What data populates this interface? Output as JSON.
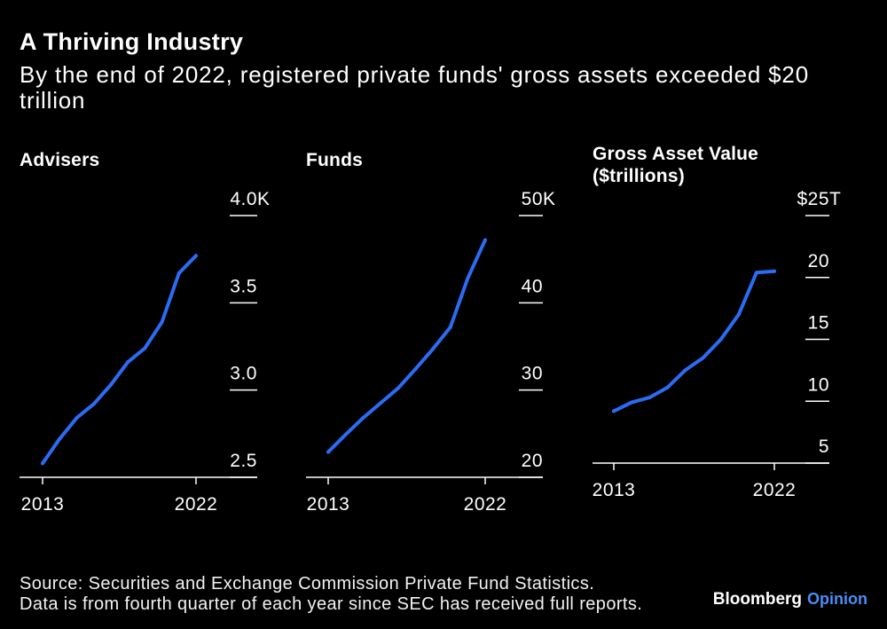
{
  "header": {
    "title": "A Thriving Industry",
    "subtitle": "By the end of 2022, registered private funds' gross assets exceeded $20 trillion"
  },
  "chart_data": [
    {
      "type": "line",
      "title": "Advisers",
      "x": [
        2013,
        2014,
        2015,
        2016,
        2017,
        2018,
        2019,
        2020,
        2021,
        2022
      ],
      "y": [
        2.58,
        2.72,
        2.84,
        2.92,
        3.03,
        3.16,
        3.24,
        3.39,
        3.67,
        3.77
      ],
      "xlim": [
        2013,
        2022
      ],
      "ylim": [
        2.5,
        4.0
      ],
      "x_ticks": [
        {
          "value": 2013,
          "label": "2013"
        },
        {
          "value": 2022,
          "label": "2022"
        }
      ],
      "y_ticks": [
        {
          "value": 2.5,
          "label": "2.5"
        },
        {
          "value": 3.0,
          "label": "3.0"
        },
        {
          "value": 3.5,
          "label": "3.5"
        },
        {
          "value": 4.0,
          "label": "4.0K"
        }
      ],
      "grid": false
    },
    {
      "type": "line",
      "title": "Funds",
      "x": [
        2013,
        2014,
        2015,
        2016,
        2017,
        2018,
        2019,
        2020,
        2021,
        2022
      ],
      "y": [
        22.9,
        24.9,
        26.8,
        28.5,
        30.2,
        32.4,
        34.7,
        37.2,
        42.8,
        47.2
      ],
      "xlim": [
        2013,
        2022
      ],
      "ylim": [
        20,
        50
      ],
      "x_ticks": [
        {
          "value": 2013,
          "label": "2013"
        },
        {
          "value": 2022,
          "label": "2022"
        }
      ],
      "y_ticks": [
        {
          "value": 20,
          "label": "20"
        },
        {
          "value": 30,
          "label": "30"
        },
        {
          "value": 40,
          "label": "40"
        },
        {
          "value": 50,
          "label": "50K"
        }
      ],
      "grid": false
    },
    {
      "type": "line",
      "title": "Gross Asset Value ($trillions)",
      "x": [
        2013,
        2014,
        2015,
        2016,
        2017,
        2018,
        2019,
        2020,
        2021,
        2022
      ],
      "y": [
        9.2,
        9.9,
        10.3,
        11.1,
        12.5,
        13.5,
        15.0,
        17.0,
        20.4,
        20.5
      ],
      "xlim": [
        2013,
        2022
      ],
      "ylim": [
        5,
        25
      ],
      "x_ticks": [
        {
          "value": 2013,
          "label": "2013"
        },
        {
          "value": 2022,
          "label": "2022"
        }
      ],
      "y_ticks": [
        {
          "value": 5,
          "label": "5"
        },
        {
          "value": 10,
          "label": "10"
        },
        {
          "value": 15,
          "label": "15"
        },
        {
          "value": 20,
          "label": "20"
        },
        {
          "value": 25,
          "label": "$25T"
        }
      ],
      "grid": false
    }
  ],
  "footer": {
    "source": "Source: Securities and Exchange Commission Private Fund Statistics.",
    "note": "Data is from fourth quarter of each year since SEC has received full reports."
  },
  "brand": {
    "name": "Bloomberg",
    "section": "Opinion"
  },
  "colors": {
    "background": "#000000",
    "text": "#ffffff",
    "series_line": "#2a6cf3",
    "axis": "#ffffff",
    "brand_accent": "#4a8ef6"
  }
}
